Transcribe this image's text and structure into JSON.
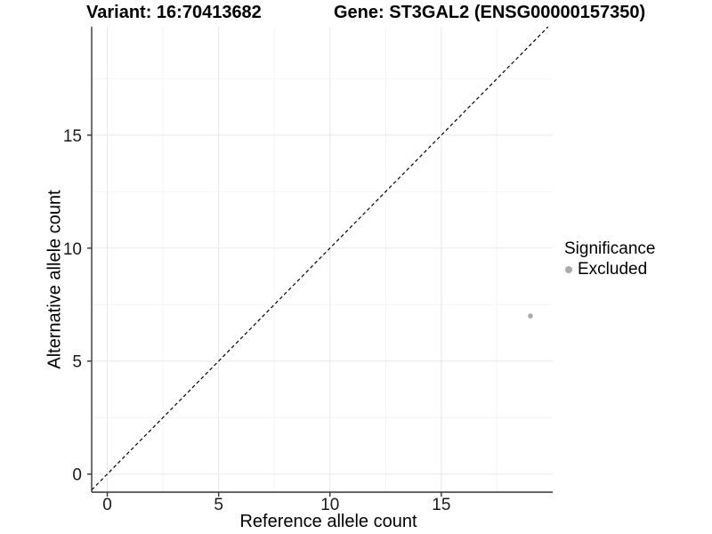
{
  "chart_data": {
    "type": "scatter",
    "titles": {
      "variant": "Variant: 16:70413682",
      "gene": "Gene: ST3GAL2 (ENSG00000157350)"
    },
    "xlabel": "Reference allele count",
    "ylabel": "Alternative allele count",
    "xlim": [
      -0.7,
      20.0
    ],
    "ylim": [
      -0.8,
      19.8
    ],
    "x_ticks": [
      0,
      5,
      10,
      15
    ],
    "y_ticks": [
      0,
      5,
      10,
      15
    ],
    "x_minor_ticks": [
      2.5,
      7.5,
      12.5,
      17.5
    ],
    "y_minor_ticks": [
      2.5,
      7.5,
      12.5,
      17.5
    ],
    "grid": true,
    "series": [
      {
        "name": "Excluded",
        "color": "#aaaaaa",
        "points": [
          {
            "x": 19,
            "y": 7
          }
        ]
      }
    ],
    "reference_line": {
      "type": "identity",
      "equation": "y = x",
      "style": "dashed",
      "color": "#000000"
    },
    "legend": {
      "title": "Significance",
      "position": "right",
      "items": [
        {
          "label": "Excluded",
          "color": "#aaaaaa",
          "marker": "circle"
        }
      ]
    }
  },
  "colors": {
    "background": "#ffffff",
    "axis": "#333333",
    "grid_major": "#e8e8e8",
    "grid_minor": "#f4f4f4",
    "tick_label": "#1a1a1a",
    "title": "#000000"
  }
}
